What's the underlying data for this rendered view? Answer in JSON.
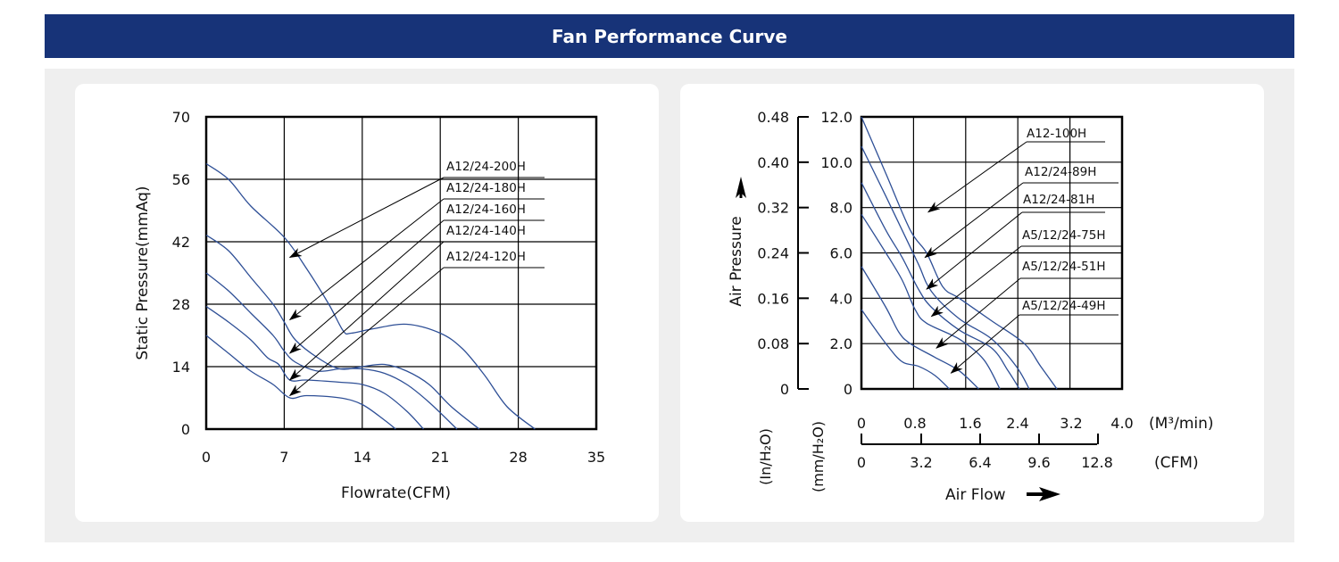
{
  "header": {
    "title": "Fan Performance Curve"
  },
  "colors": {
    "banner": "#173378",
    "curve": "#2e4f96",
    "background": "#efefef"
  },
  "chart_data": [
    {
      "type": "line",
      "title": "",
      "xlabel": "Flowrate(CFM)",
      "ylabel": "Static Pressure(mmAq)",
      "xlim": [
        0,
        35
      ],
      "ylim": [
        0,
        70
      ],
      "xticks": [
        "0",
        "7",
        "14",
        "21",
        "28",
        "35"
      ],
      "yticks": [
        "0",
        "14",
        "28",
        "42",
        "56",
        "70"
      ],
      "grid": true,
      "series": [
        {
          "name": "A12/24-200H",
          "points": [
            [
              0,
              59.5
            ],
            [
              2,
              56
            ],
            [
              4,
              50
            ],
            [
              7,
              43
            ],
            [
              9,
              36
            ],
            [
              11,
              28
            ],
            [
              12.3,
              22
            ],
            [
              13,
              21.5
            ],
            [
              15,
              22.5
            ],
            [
              18,
              23.5
            ],
            [
              21,
              21.5
            ],
            [
              23,
              18
            ],
            [
              25,
              12
            ],
            [
              27,
              5
            ],
            [
              29.5,
              0
            ]
          ]
        },
        {
          "name": "A12/24-180H",
          "points": [
            [
              0,
              43.5
            ],
            [
              2,
              40
            ],
            [
              4,
              34
            ],
            [
              6,
              28
            ],
            [
              7,
              24
            ],
            [
              8,
              20
            ],
            [
              10,
              16
            ],
            [
              12,
              13.5
            ],
            [
              14,
              14
            ],
            [
              16,
              14.5
            ],
            [
              18,
              13
            ],
            [
              20,
              10
            ],
            [
              22,
              5
            ],
            [
              24.5,
              0
            ]
          ]
        },
        {
          "name": "A12/24-160H",
          "points": [
            [
              0,
              35
            ],
            [
              2,
              31
            ],
            [
              4,
              26
            ],
            [
              6,
              21
            ],
            [
              7,
              17.5
            ],
            [
              8,
              15
            ],
            [
              10,
              13
            ],
            [
              12,
              13.5
            ],
            [
              14,
              13.5
            ],
            [
              16,
              12.5
            ],
            [
              18,
              10
            ],
            [
              20,
              6
            ],
            [
              22.5,
              0
            ]
          ]
        },
        {
          "name": "A12/24-140H",
          "points": [
            [
              0,
              27.5
            ],
            [
              2,
              24
            ],
            [
              4,
              20
            ],
            [
              5.5,
              16
            ],
            [
              6.5,
              14.5
            ],
            [
              7.5,
              11
            ],
            [
              9,
              11
            ],
            [
              12,
              10.5
            ],
            [
              14,
              10
            ],
            [
              16,
              8
            ],
            [
              18,
              4
            ],
            [
              19.5,
              0
            ]
          ]
        },
        {
          "name": "A12/24-120H",
          "points": [
            [
              0,
              21
            ],
            [
              2,
              17
            ],
            [
              4,
              13
            ],
            [
              6,
              10
            ],
            [
              7.5,
              7
            ],
            [
              9,
              7.5
            ],
            [
              12,
              7
            ],
            [
              14,
              5.5
            ],
            [
              16,
              2
            ],
            [
              17,
              0
            ]
          ]
        }
      ],
      "annotations": [
        {
          "text": "A12/24-200H",
          "arrow_to": [
            7.5,
            38.5
          ]
        },
        {
          "text": "A12/24-180H",
          "arrow_to": [
            7.5,
            24.5
          ]
        },
        {
          "text": "A12/24-160H",
          "arrow_to": [
            7.5,
            17
          ]
        },
        {
          "text": "A12/24-140H",
          "arrow_to": [
            7.5,
            11
          ]
        },
        {
          "text": "A12/24-120H",
          "arrow_to": [
            7.5,
            7.5
          ]
        }
      ]
    },
    {
      "type": "line",
      "title": "",
      "xlabel": "Air Flow",
      "ylabel": "Air Pressure",
      "x_primary_unit": "(CFM)",
      "x_secondary_unit": "(M³/min)",
      "y_primary_unit": "(mm/H₂O)",
      "y_secondary_unit": "(In/H₂O)",
      "xlim": [
        0,
        16
      ],
      "ylim": [
        0,
        12
      ],
      "xticks_cfm": [
        "0",
        "3.2",
        "6.4",
        "9.6",
        "12.8"
      ],
      "xticks_m3min": [
        "0",
        "0.8",
        "1.6",
        "2.4",
        "3.2",
        "4.0"
      ],
      "yticks_mm": [
        "0",
        "2.0",
        "4.0",
        "6.0",
        "8.0",
        "10.0",
        "12.0"
      ],
      "yticks_in": [
        "0",
        "0.08",
        "0.16",
        "0.24",
        "0.32",
        "0.40",
        "0.48"
      ],
      "grid": true,
      "series": [
        {
          "name": "A12-100H",
          "points": [
            [
              0,
              12
            ],
            [
              1.5,
              9.5
            ],
            [
              3,
              7
            ],
            [
              4,
              6
            ],
            [
              5,
              4.5
            ],
            [
              6,
              4
            ],
            [
              8,
              3
            ],
            [
              10,
              2
            ],
            [
              11,
              1
            ],
            [
              12,
              0
            ]
          ]
        },
        {
          "name": "A12/24-89H",
          "points": [
            [
              0,
              10.7
            ],
            [
              1.5,
              8.5
            ],
            [
              2.5,
              7
            ],
            [
              3.5,
              5.5
            ],
            [
              4.3,
              4.3
            ],
            [
              6,
              3.1
            ],
            [
              8,
              2.2
            ],
            [
              9.5,
              1
            ],
            [
              10.3,
              0
            ]
          ]
        },
        {
          "name": "A12/24-81H",
          "points": [
            [
              0,
              9.1
            ],
            [
              1.5,
              7
            ],
            [
              2.5,
              5.8
            ],
            [
              3.5,
              4.4
            ],
            [
              4.3,
              3.6
            ],
            [
              6,
              2.6
            ],
            [
              8,
              1.8
            ],
            [
              9,
              0.8
            ],
            [
              9.7,
              0
            ]
          ]
        },
        {
          "name": "A5/12/24-75H",
          "points": [
            [
              0,
              7.7
            ],
            [
              1.5,
              6
            ],
            [
              2.5,
              4.8
            ],
            [
              3.3,
              3.5
            ],
            [
              4,
              2.9
            ],
            [
              6,
              2.2
            ],
            [
              7.5,
              1.3
            ],
            [
              8.5,
              0
            ]
          ]
        },
        {
          "name": "A5/12/24-51H",
          "points": [
            [
              0,
              5.4
            ],
            [
              1.5,
              3.6
            ],
            [
              2.3,
              2.5
            ],
            [
              3,
              2
            ],
            [
              4.5,
              1.4
            ],
            [
              6,
              0.8
            ],
            [
              7.2,
              0
            ]
          ]
        },
        {
          "name": "A5/12/24-49H",
          "points": [
            [
              0,
              3.5
            ],
            [
              1.5,
              2
            ],
            [
              2.5,
              1.2
            ],
            [
              3.5,
              1
            ],
            [
              4.5,
              0.6
            ],
            [
              5.4,
              0
            ]
          ]
        }
      ],
      "annotations": [
        {
          "text": "A12-100H",
          "arrow_to": [
            4.1,
            7.8
          ]
        },
        {
          "text": "A12/24-89H",
          "arrow_to": [
            3.9,
            5.8
          ]
        },
        {
          "text": "A12/24-81H",
          "arrow_to": [
            4.0,
            4.4
          ]
        },
        {
          "text": "A5/12/24-75H",
          "arrow_to": [
            4.3,
            3.2
          ]
        },
        {
          "text": "A5/12/24-51H",
          "arrow_to": [
            4.6,
            1.8
          ]
        },
        {
          "text": "A5/12/24-49H",
          "arrow_to": [
            5.5,
            0.7
          ]
        }
      ]
    }
  ]
}
